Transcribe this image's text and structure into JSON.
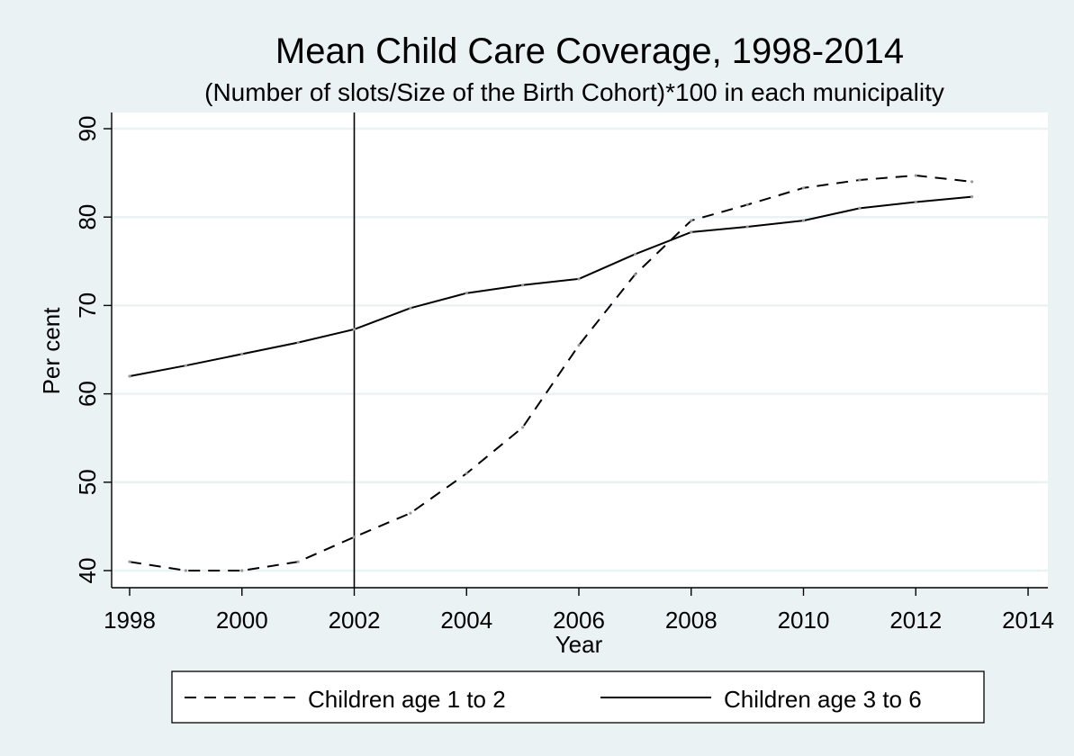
{
  "chart_data": {
    "type": "line",
    "title": "Mean Child Care Coverage, 1998-2014",
    "subtitle": "(Number of slots/Size of the Birth Cohort)*100 in each municipality",
    "xlabel": "Year",
    "ylabel": "Per cent",
    "xlim": [
      1998,
      2014
    ],
    "ylim": [
      40,
      90
    ],
    "x_ticks": [
      "1998",
      "2000",
      "2002",
      "2004",
      "2006",
      "2008",
      "2010",
      "2012",
      "2014"
    ],
    "y_ticks": [
      "40",
      "50",
      "60",
      "70",
      "80",
      "90"
    ],
    "reference_line_x": 2002,
    "grid": "horizontal",
    "legend_position": "bottom",
    "x": [
      1998,
      1999,
      2000,
      2001,
      2002,
      2003,
      2004,
      2005,
      2006,
      2007,
      2008,
      2009,
      2010,
      2011,
      2012,
      2013
    ],
    "series": [
      {
        "name": "Children age 1 to 2",
        "style": "dashed",
        "values": [
          41.0,
          40.0,
          40.0,
          41.0,
          43.8,
          46.5,
          51.0,
          56.2,
          65.5,
          73.5,
          79.6,
          81.4,
          83.3,
          84.2,
          84.7,
          84.0
        ]
      },
      {
        "name": "Children age 3 to 6",
        "style": "solid",
        "values": [
          62.0,
          63.2,
          64.5,
          65.8,
          67.3,
          69.7,
          71.4,
          72.3,
          73.0,
          75.8,
          78.3,
          78.9,
          79.6,
          81.0,
          81.7,
          82.3
        ]
      }
    ]
  },
  "colors": {
    "background": "#eaf2f3",
    "plot_background": "#ffffff",
    "grid": "#eaf2f3",
    "line": "#000000"
  }
}
